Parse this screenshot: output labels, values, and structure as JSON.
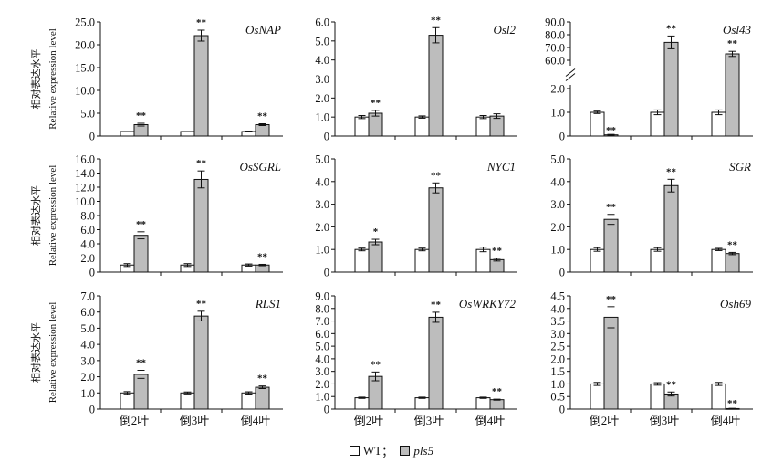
{
  "y_label_cn": "相对表达水平",
  "y_label_en": "Relative expression level",
  "legend": {
    "wt": "WT",
    "separator": "；",
    "mutant": "pls5",
    "wt_color": "#ffffff",
    "mutant_color": "#bdbdbd"
  },
  "chart_data": [
    {
      "type": "bar",
      "title": "OsNAP",
      "categories": [
        "倒2叶",
        "倒3叶",
        "倒4叶"
      ],
      "series": [
        {
          "name": "WT",
          "values": [
            1.0,
            1.0,
            1.0
          ],
          "errors": [
            0,
            0,
            0.1
          ]
        },
        {
          "name": "pls5",
          "values": [
            2.5,
            22.0,
            2.5
          ],
          "errors": [
            0.3,
            1.2,
            0.2
          ]
        }
      ],
      "significance": [
        "**",
        "**",
        "**"
      ],
      "ylim": [
        0,
        25
      ],
      "yticks": [
        "0",
        "5.0",
        "10.0",
        "15.0",
        "20.0",
        "25.0"
      ]
    },
    {
      "type": "bar",
      "title": "Osl2",
      "categories": [
        "倒2叶",
        "倒3叶",
        "倒4叶"
      ],
      "series": [
        {
          "name": "WT",
          "values": [
            1.0,
            1.0,
            1.0
          ],
          "errors": [
            0.08,
            0.06,
            0.08
          ]
        },
        {
          "name": "pls5",
          "values": [
            1.2,
            5.3,
            1.05
          ],
          "errors": [
            0.15,
            0.4,
            0.12
          ]
        }
      ],
      "significance": [
        "**",
        "**",
        ""
      ],
      "ylim": [
        0,
        6
      ],
      "yticks": [
        "0",
        "1.0",
        "2.0",
        "3.0",
        "4.0",
        "5.0",
        "6.0"
      ]
    },
    {
      "type": "bar",
      "title": "Osl43",
      "categories": [
        "倒2叶",
        "倒3叶",
        "倒4叶"
      ],
      "series": [
        {
          "name": "WT",
          "values": [
            1.0,
            1.0,
            1.0
          ],
          "errors": [
            0.05,
            0.1,
            0.1
          ]
        },
        {
          "name": "pls5",
          "values": [
            0.05,
            74,
            65
          ],
          "errors": [
            0.02,
            5,
            2
          ]
        }
      ],
      "significance": [
        "**",
        "**",
        "**"
      ],
      "ylim": [
        0,
        90
      ],
      "axis_break": {
        "lower": [
          0,
          2
        ],
        "upper": [
          60,
          90
        ]
      },
      "yticks": [
        "0",
        "1.0",
        "2.0",
        "60.0",
        "70.0",
        "80.0",
        "90.0"
      ]
    },
    {
      "type": "bar",
      "title": "OsSGRL",
      "categories": [
        "倒2叶",
        "倒3叶",
        "倒4叶"
      ],
      "series": [
        {
          "name": "WT",
          "values": [
            1.0,
            1.0,
            1.0
          ],
          "errors": [
            0.2,
            0.2,
            0.15
          ]
        },
        {
          "name": "pls5",
          "values": [
            5.2,
            13.1,
            1.0
          ],
          "errors": [
            0.5,
            1.2,
            0.1
          ]
        }
      ],
      "significance": [
        "**",
        "**",
        "**"
      ],
      "ylim": [
        0,
        16
      ],
      "yticks": [
        "0",
        "2.0",
        "4.0",
        "6.0",
        "8.0",
        "10.0",
        "12.0",
        "14.0",
        "16.0"
      ]
    },
    {
      "type": "bar",
      "title": "NYC1",
      "categories": [
        "倒2叶",
        "倒3叶",
        "倒4叶"
      ],
      "series": [
        {
          "name": "WT",
          "values": [
            1.0,
            1.0,
            1.0
          ],
          "errors": [
            0.06,
            0.06,
            0.1
          ]
        },
        {
          "name": "pls5",
          "values": [
            1.33,
            3.72,
            0.55
          ],
          "errors": [
            0.12,
            0.22,
            0.06
          ]
        }
      ],
      "significance": [
        "*",
        "**",
        "**"
      ],
      "ylim": [
        0,
        5
      ],
      "yticks": [
        "0",
        "1.0",
        "2.0",
        "3.0",
        "4.0",
        "5.0"
      ]
    },
    {
      "type": "bar",
      "title": "SGR",
      "categories": [
        "倒2叶",
        "倒3叶",
        "倒4叶"
      ],
      "series": [
        {
          "name": "WT",
          "values": [
            1.0,
            1.0,
            1.0
          ],
          "errors": [
            0.08,
            0.08,
            0.05
          ]
        },
        {
          "name": "pls5",
          "values": [
            2.33,
            3.82,
            0.82
          ],
          "errors": [
            0.22,
            0.28,
            0.05
          ]
        }
      ],
      "significance": [
        "**",
        "**",
        "**"
      ],
      "ylim": [
        0,
        5
      ],
      "yticks": [
        "0",
        "1.0",
        "2.0",
        "3.0",
        "4.0",
        "5.0"
      ]
    },
    {
      "type": "bar",
      "title": "RLS1",
      "categories": [
        "倒2叶",
        "倒3叶",
        "倒4叶"
      ],
      "series": [
        {
          "name": "WT",
          "values": [
            1.0,
            1.0,
            1.0
          ],
          "errors": [
            0.08,
            0.06,
            0.07
          ]
        },
        {
          "name": "pls5",
          "values": [
            2.15,
            5.75,
            1.35
          ],
          "errors": [
            0.25,
            0.3,
            0.08
          ]
        }
      ],
      "significance": [
        "**",
        "**",
        "**"
      ],
      "ylim": [
        0,
        7
      ],
      "yticks": [
        "0",
        "1.0",
        "2.0",
        "3.0",
        "4.0",
        "5.0",
        "6.0",
        "7.0"
      ]
    },
    {
      "type": "bar",
      "title": "OsWRKY72",
      "categories": [
        "倒2叶",
        "倒3叶",
        "倒4叶"
      ],
      "series": [
        {
          "name": "WT",
          "values": [
            0.9,
            0.9,
            0.9
          ],
          "errors": [
            0.05,
            0.05,
            0.05
          ]
        },
        {
          "name": "pls5",
          "values": [
            2.6,
            7.3,
            0.75
          ],
          "errors": [
            0.35,
            0.4,
            0.04
          ]
        }
      ],
      "significance": [
        "**",
        "**",
        "**"
      ],
      "ylim": [
        0,
        9
      ],
      "yticks": [
        "0",
        "1.0",
        "2.0",
        "3.0",
        "4.0",
        "5.0",
        "6.0",
        "7.0",
        "8.0",
        "9.0"
      ]
    },
    {
      "type": "bar",
      "title": "Osh69",
      "categories": [
        "倒2叶",
        "倒3叶",
        "倒4叶"
      ],
      "series": [
        {
          "name": "WT",
          "values": [
            1.0,
            1.0,
            1.0
          ],
          "errors": [
            0.06,
            0.05,
            0.06
          ]
        },
        {
          "name": "pls5",
          "values": [
            3.65,
            0.6,
            0.02
          ],
          "errors": [
            0.42,
            0.08,
            0.01
          ]
        }
      ],
      "significance": [
        "**",
        "**",
        "**"
      ],
      "ylim": [
        0,
        4.5
      ],
      "yticks": [
        "0",
        "0.5",
        "1.0",
        "1.5",
        "2.0",
        "2.5",
        "3.0",
        "3.5",
        "4.0",
        "4.5"
      ]
    }
  ]
}
